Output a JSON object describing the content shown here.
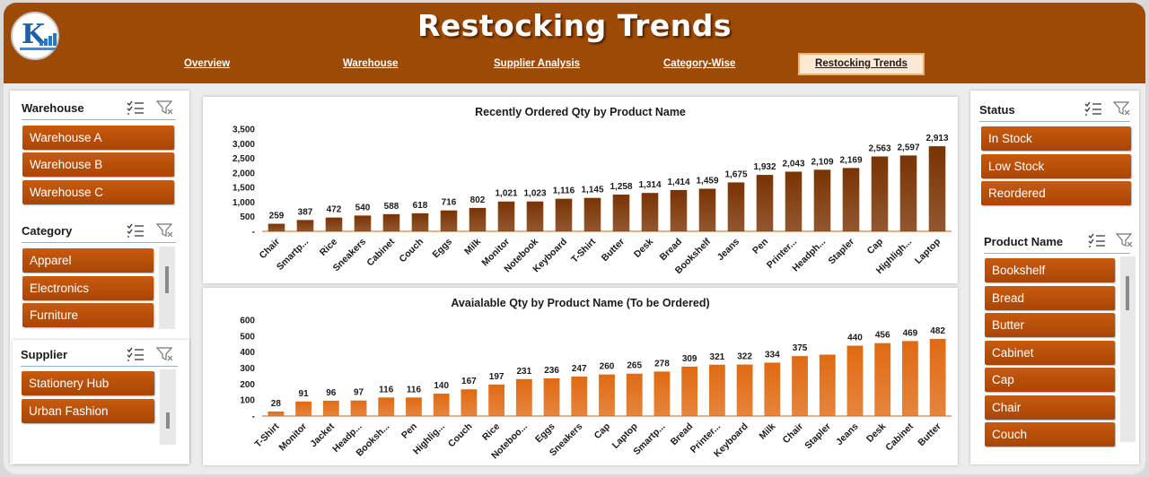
{
  "header": {
    "title": "Restocking Trends",
    "nav": [
      {
        "label": "Overview",
        "active": false
      },
      {
        "label": "Warehouse",
        "active": false
      },
      {
        "label": "Supplier Analysis",
        "active": false
      },
      {
        "label": "Category-Wise",
        "active": false
      },
      {
        "label": "Restocking Trends",
        "active": true
      }
    ]
  },
  "slicers": {
    "warehouse": {
      "title": "Warehouse",
      "items": [
        "Warehouse A",
        "Warehouse B",
        "Warehouse C"
      ]
    },
    "category": {
      "title": "Category",
      "items": [
        "Apparel",
        "Electronics",
        "Furniture"
      ]
    },
    "supplier": {
      "title": "Supplier",
      "items": [
        "Stationery Hub",
        "Urban Fashion"
      ]
    },
    "status": {
      "title": "Status",
      "items": [
        "In Stock",
        "Low Stock",
        "Reordered"
      ]
    },
    "product": {
      "title": "Product Name",
      "items": [
        "Bookshelf",
        "Bread",
        "Butter",
        "Cabinet",
        "Cap",
        "Chair",
        "Couch"
      ]
    }
  },
  "icons": {
    "multi_select": "multi-select-icon",
    "clear_filter": "clear-filter-icon"
  },
  "colors": {
    "header": "#9c4a06",
    "bar_dark": "#7a3303",
    "bar_orange": "#e06a12",
    "button": "#b54e08"
  },
  "chart_data": [
    {
      "type": "bar",
      "title": "Recently Ordered Qty by Product Name",
      "categories": [
        "Chair",
        "Smartp...",
        "Rice",
        "Sneakers",
        "Cabinet",
        "Couch",
        "Eggs",
        "Milk",
        "Monitor",
        "Notebook",
        "Keyboard",
        "T-Shirt",
        "Butter",
        "Desk",
        "Bread",
        "Bookshelf",
        "Jeans",
        "Pen",
        "Printer...",
        "Headph...",
        "Stapler",
        "Cap",
        "Highligh...",
        "Laptop"
      ],
      "values": [
        259,
        387,
        472,
        540,
        588,
        618,
        716,
        802,
        1021,
        1023,
        1116,
        1145,
        1258,
        1314,
        1414,
        1459,
        1675,
        1932,
        2043,
        2109,
        2169,
        2563,
        2597,
        2913
      ],
      "value_labels": [
        "259",
        "387",
        "472",
        "540",
        "588",
        "618",
        "716",
        "802",
        "1,021",
        "1,023",
        "1,116",
        "1,145",
        "1,258",
        "1,314",
        "1,414",
        "1,459",
        "1,675",
        "1,932",
        "2,043",
        "2,109",
        "2,169",
        "2,563",
        "2,597",
        "2,913"
      ],
      "y_ticks": [
        "-",
        "500",
        "1,000",
        "1,500",
        "2,000",
        "2,500",
        "3,000",
        "3,500"
      ],
      "ylim": [
        0,
        3500
      ],
      "color": "#7a3303"
    },
    {
      "type": "bar",
      "title": "Avaialable Qty by Product Name (To be Ordered)",
      "categories": [
        "T-Shirt",
        "Monitor",
        "Jacket",
        "Headp...",
        "Booksh...",
        "Pen",
        "Highlig...",
        "Couch",
        "Rice",
        "Noteboo...",
        "Eggs",
        "Sneakers",
        "Cap",
        "Laptop",
        "Smartp...",
        "Bread",
        "Printer...",
        "Keyboard",
        "Milk",
        "Chair",
        "Stapler",
        "Jeans",
        "Desk",
        "Cabinet",
        "Butter"
      ],
      "values": [
        28,
        91,
        96,
        97,
        116,
        116,
        140,
        167,
        197,
        231,
        236,
        247,
        260,
        265,
        278,
        309,
        321,
        322,
        334,
        375,
        384,
        440,
        456,
        469,
        482
      ],
      "value_labels": [
        "28",
        "91",
        "96",
        "97",
        "116",
        "116",
        "140",
        "167",
        "197",
        "231",
        "236",
        "247",
        "260",
        "265",
        "278",
        "309",
        "321",
        "322",
        "334",
        "375",
        "",
        "440",
        "456",
        "469",
        "482"
      ],
      "y_ticks": [
        "-",
        "100",
        "200",
        "300",
        "400",
        "500",
        "600"
      ],
      "ylim": [
        0,
        600
      ],
      "color": "#e06a12"
    }
  ]
}
